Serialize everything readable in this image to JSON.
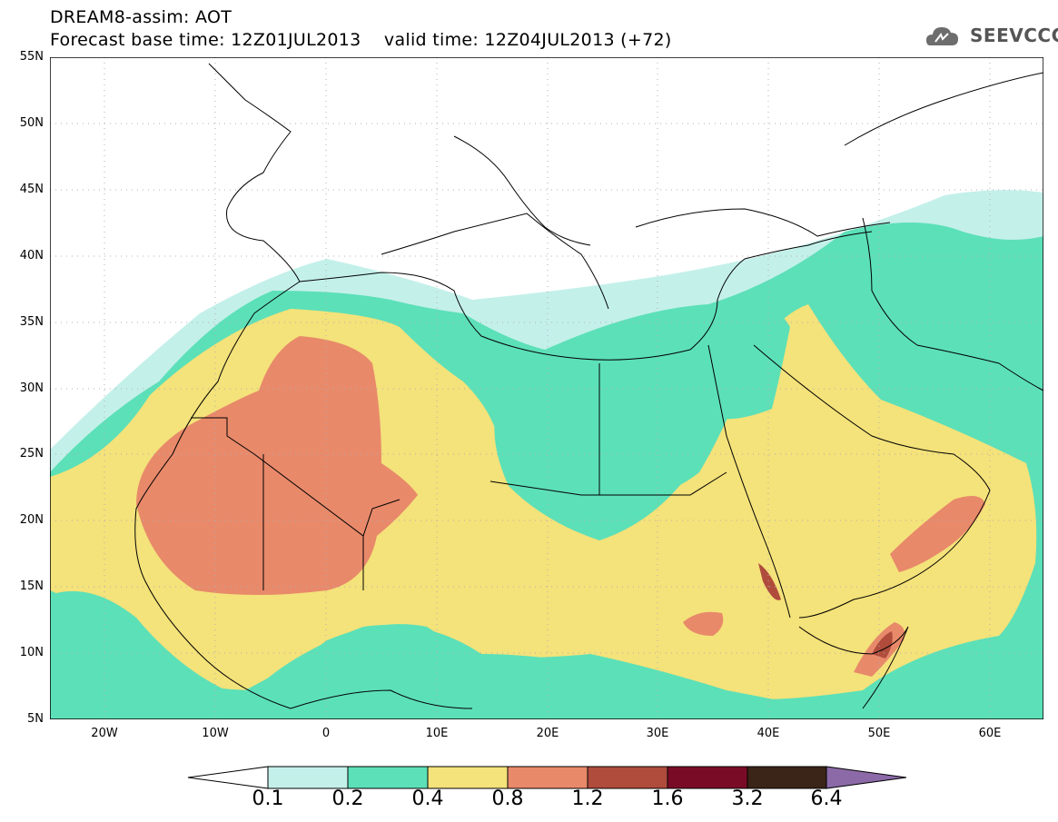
{
  "title": {
    "line1": "DREAM8-assim: AOT",
    "line2": "Forecast base time: 12Z01JUL2013    valid time: 12Z04JUL2013 (+72)"
  },
  "logo": {
    "text": "SEEVCCC",
    "icon": "cloud-icon"
  },
  "map": {
    "lat_labels": [
      "55N",
      "50N",
      "45N",
      "40N",
      "35N",
      "30N",
      "25N",
      "20N",
      "15N",
      "10N",
      "5N"
    ],
    "lon_labels": [
      "20W",
      "10W",
      "0",
      "10E",
      "20E",
      "30E",
      "40E",
      "50E",
      "60E"
    ]
  },
  "colorbar": {
    "colors": [
      "#ffffff",
      "#c4f0ea",
      "#5ce0b8",
      "#f4e27a",
      "#e8896a",
      "#b04c3c",
      "#7a0b26",
      "#3b2418",
      "#8c6aa8"
    ],
    "labels": [
      "0.1",
      "0.2",
      "0.4",
      "0.8",
      "1.2",
      "1.6",
      "3.2",
      "6.4"
    ]
  }
}
